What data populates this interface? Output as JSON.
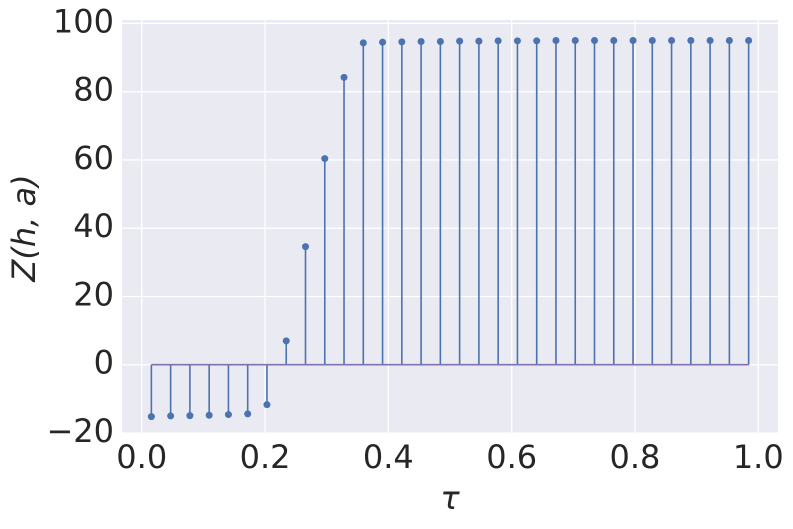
{
  "chart_data": {
    "type": "stem",
    "x_label": "τ",
    "y_label": "Z(h, a)",
    "x": [
      0.015625,
      0.046875,
      0.078125,
      0.109375,
      0.140625,
      0.171875,
      0.203125,
      0.234375,
      0.265625,
      0.296875,
      0.328125,
      0.359375,
      0.390625,
      0.421875,
      0.453125,
      0.484375,
      0.515625,
      0.546875,
      0.578125,
      0.609375,
      0.640625,
      0.671875,
      0.703125,
      0.734375,
      0.765625,
      0.796875,
      0.828125,
      0.859375,
      0.890625,
      0.921875,
      0.953125,
      0.984375
    ],
    "series": [
      {
        "color": "#4c72b0",
        "values": [
          -15.2,
          -15.0,
          -14.9,
          -14.8,
          -14.6,
          -14.4,
          -11.7,
          7.0,
          34.6,
          60.4,
          84.2,
          94.3,
          94.5,
          94.6,
          94.7,
          94.7,
          94.8,
          94.8,
          94.9,
          94.9,
          94.9,
          95.0,
          95.0,
          95.0,
          95.0,
          95.0,
          95.0,
          95.0,
          95.0,
          95.0,
          95.0,
          95.0
        ]
      }
    ],
    "baseline_color": "#8172b2",
    "xlim": [
      -0.032,
      1.032
    ],
    "ylim": [
      -20,
      101
    ],
    "xticks": [
      {
        "value": 0,
        "label": "0.0"
      },
      0.2,
      0.4,
      0.6,
      0.8,
      {
        "value": 1,
        "label": "1.0"
      }
    ],
    "yticks": [
      {
        "value": -20,
        "label": "−20"
      },
      0,
      20,
      40,
      60,
      80,
      100
    ],
    "grid": true,
    "background": "#eaeaf2"
  }
}
